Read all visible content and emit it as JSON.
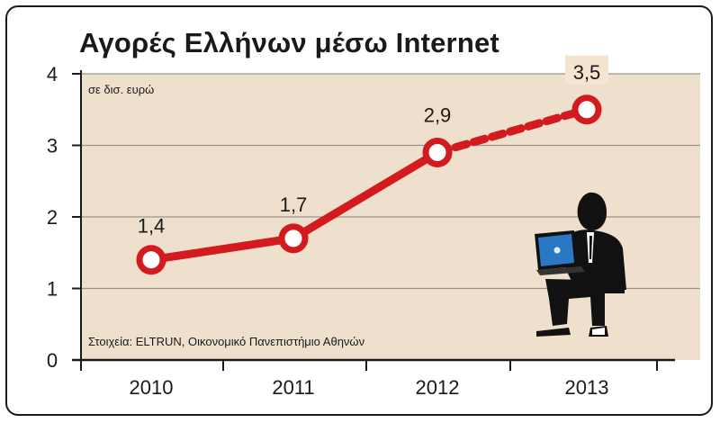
{
  "chart_data": {
    "type": "line",
    "title": "Αγορές Ελλήνων μέσω Internet",
    "unit_note": "σε δισ. ευρώ",
    "source": "Στοιχεία: ELTRUN, Οικονομικό Πανεπιστήμιο Αθηνών",
    "categories": [
      "2010",
      "2011",
      "2012",
      "2013"
    ],
    "values": [
      1.4,
      1.7,
      2.9,
      3.5
    ],
    "value_labels": [
      "1,4",
      "1,7",
      "2,9",
      "3,5"
    ],
    "projected_from_index": 2,
    "yticks": [
      0,
      1,
      2,
      3,
      4
    ],
    "ylim": [
      0,
      4
    ],
    "grid": true,
    "colors": {
      "plot_background": "#eee0cc",
      "line": "#d21a1f",
      "marker_fill": "#ffffff",
      "grid": "#ffffff",
      "highlight_label_bg": "#f5e4cf"
    },
    "illustration": "man-with-laptop-icon"
  }
}
